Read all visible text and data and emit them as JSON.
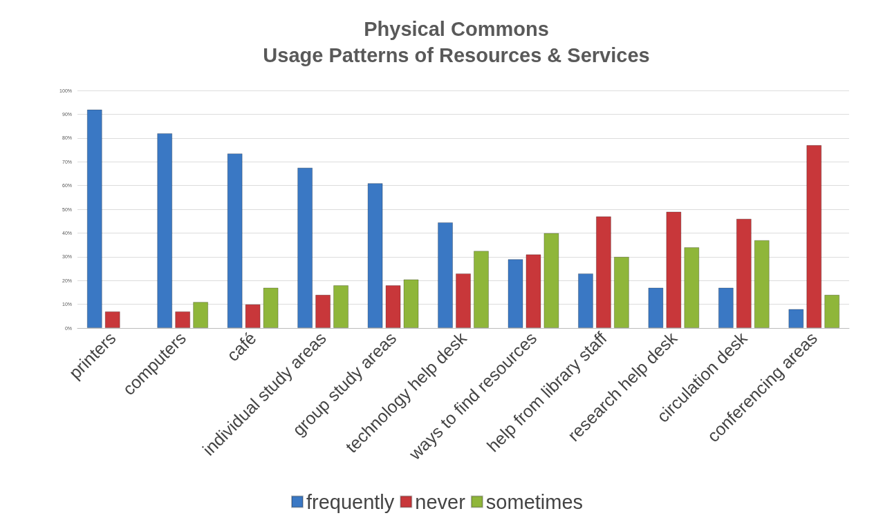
{
  "chart_data": {
    "type": "bar",
    "title": "Physical Commons\nUsage Patterns of Resources & Services",
    "categories": [
      "printers",
      "computers",
      "café",
      "individual study areas",
      "group study areas",
      "technology help desk",
      "ways to find resources",
      "help from library staff",
      "research help desk",
      "circulation desk",
      "conferencing areas"
    ],
    "series": [
      {
        "name": "frequently",
        "color": "#3a78c4",
        "values": [
          92,
          82,
          73.5,
          67.5,
          61,
          44.5,
          29,
          23,
          17,
          17,
          8
        ]
      },
      {
        "name": "never",
        "color": "#c8373a",
        "values": [
          7,
          7,
          10,
          14,
          18,
          23,
          31,
          47,
          49,
          46,
          77
        ]
      },
      {
        "name": "sometimes",
        "color": "#8fb63a",
        "values": [
          null,
          11,
          17,
          18,
          20.5,
          32.5,
          40,
          30,
          34,
          37,
          14
        ]
      }
    ],
    "ylim": [
      0,
      100
    ],
    "yticks": [
      {
        "value": 0,
        "label": "0%"
      },
      {
        "value": 10,
        "label": "10%"
      },
      {
        "value": 20,
        "label": "20%"
      },
      {
        "value": 30,
        "label": "30%"
      },
      {
        "value": 40,
        "label": "40%"
      },
      {
        "value": 50,
        "label": "50%"
      },
      {
        "value": 60,
        "label": "60%"
      },
      {
        "value": 70,
        "label": "70%"
      },
      {
        "value": 80,
        "label": "80%"
      },
      {
        "value": 90,
        "label": "90%"
      },
      {
        "value": 100,
        "label": "100%"
      }
    ],
    "grid": "y",
    "legend": "bottom"
  }
}
